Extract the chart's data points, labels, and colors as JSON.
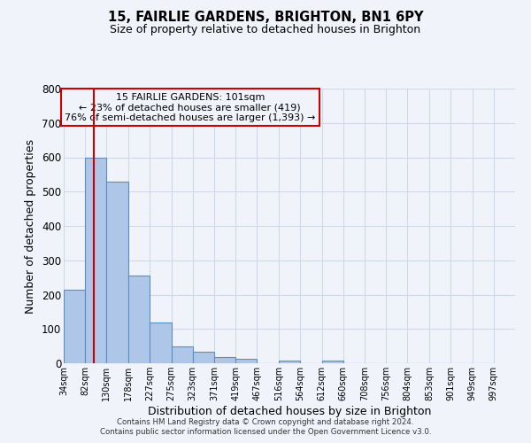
{
  "title": "15, FAIRLIE GARDENS, BRIGHTON, BN1 6PY",
  "subtitle": "Size of property relative to detached houses in Brighton",
  "xlabel": "Distribution of detached houses by size in Brighton",
  "ylabel": "Number of detached properties",
  "bar_left_edges": [
    34,
    82,
    130,
    178,
    227,
    275,
    323,
    371,
    419,
    467,
    516,
    564,
    612,
    660,
    708,
    756,
    804,
    853,
    901,
    949
  ],
  "bar_heights": [
    215,
    600,
    530,
    255,
    118,
    50,
    33,
    18,
    13,
    0,
    8,
    0,
    7,
    0,
    0,
    0,
    0,
    0,
    0,
    0
  ],
  "bin_width": 48,
  "bar_color": "#aec6e8",
  "bar_edgecolor": "#5a8fc2",
  "bar_linewidth": 0.8,
  "ylim": [
    0,
    800
  ],
  "yticks": [
    0,
    100,
    200,
    300,
    400,
    500,
    600,
    700,
    800
  ],
  "tick_labels": [
    "34sqm",
    "82sqm",
    "130sqm",
    "178sqm",
    "227sqm",
    "275sqm",
    "323sqm",
    "371sqm",
    "419sqm",
    "467sqm",
    "516sqm",
    "564sqm",
    "612sqm",
    "660sqm",
    "708sqm",
    "756sqm",
    "804sqm",
    "853sqm",
    "901sqm",
    "949sqm",
    "997sqm"
  ],
  "property_line_x": 101,
  "property_line_color": "#cc0000",
  "annotation_title": "15 FAIRLIE GARDENS: 101sqm",
  "annotation_line1": "← 23% of detached houses are smaller (419)",
  "annotation_line2": "76% of semi-detached houses are larger (1,393) →",
  "annotation_box_color": "#cc0000",
  "grid_color": "#d0d8e8",
  "background_color": "#f0f4fa",
  "footer1": "Contains HM Land Registry data © Crown copyright and database right 2024.",
  "footer2": "Contains public sector information licensed under the Open Government Licence v3.0."
}
